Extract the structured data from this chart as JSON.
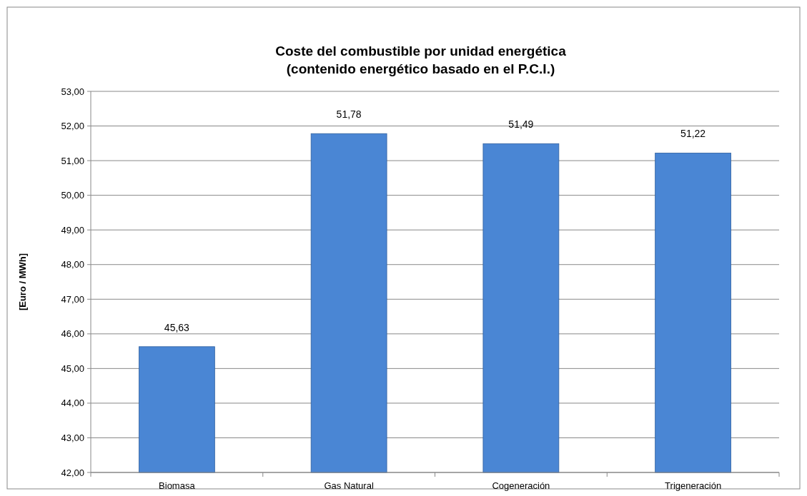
{
  "chart_data": {
    "type": "bar",
    "title": "Coste del combustible por unidad energética\n(contenido energético basado en el P.C.I.)",
    "ylabel": "[Euro / MWh]",
    "categories": [
      "Biomasa",
      "Gas Natural",
      "Cogeneración",
      "Trigeneración"
    ],
    "values": [
      45.63,
      51.78,
      51.49,
      51.22
    ],
    "value_labels": [
      "45,63",
      "51,78",
      "51,49",
      "51,22"
    ],
    "color": "#4a86d4",
    "ylim": [
      42,
      53
    ],
    "yticks": [
      {
        "value": 42,
        "label": "42,00"
      },
      {
        "value": 43,
        "label": "43,00"
      },
      {
        "value": 44,
        "label": "44,00"
      },
      {
        "value": 45,
        "label": "45,00"
      },
      {
        "value": 46,
        "label": "46,00"
      },
      {
        "value": 47,
        "label": "47,00"
      },
      {
        "value": 48,
        "label": "48,00"
      },
      {
        "value": 49,
        "label": "49,00"
      },
      {
        "value": 50,
        "label": "50,00"
      },
      {
        "value": 51,
        "label": "51,00"
      },
      {
        "value": 52,
        "label": "52,00"
      },
      {
        "value": 53,
        "label": "53,00"
      }
    ],
    "grid": "y"
  }
}
